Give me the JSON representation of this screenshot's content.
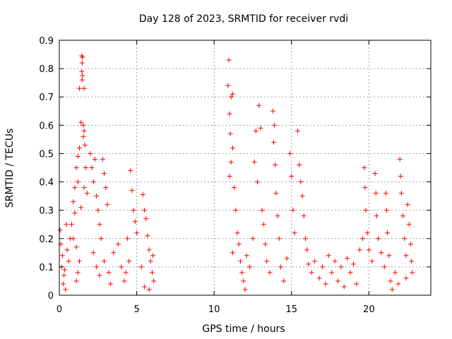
{
  "chart_data": {
    "type": "scatter",
    "title": "Day 128 of 2023, SRMTID for receiver rvdi",
    "xlabel": "GPS time / hours",
    "ylabel": "SRMTID / TECUs",
    "xlim": [
      0,
      24
    ],
    "ylim": [
      0,
      0.9
    ],
    "x_ticks": [
      0,
      5,
      10,
      15,
      20
    ],
    "x_tick_labels": [
      "0",
      "5",
      "10",
      "15",
      "20"
    ],
    "y_ticks": [
      0,
      0.1,
      0.2,
      0.3,
      0.4,
      0.5,
      0.6,
      0.7,
      0.8,
      0.9
    ],
    "y_tick_labels": [
      "0",
      "0.1",
      "0.2",
      "0.3",
      "0.4",
      "0.5",
      "0.6",
      "0.7",
      "0.8",
      "0.9"
    ],
    "grid": true,
    "marker": "plus",
    "marker_color": "#ff0000",
    "series": [
      {
        "name": "SRMTID",
        "points": [
          [
            1.45,
            0.845
          ],
          [
            1.5,
            0.84
          ],
          [
            1.48,
            0.82
          ],
          [
            1.45,
            0.79
          ],
          [
            1.5,
            0.775
          ],
          [
            1.47,
            0.76
          ],
          [
            1.3,
            0.73
          ],
          [
            1.6,
            0.73
          ],
          [
            1.4,
            0.61
          ],
          [
            1.55,
            0.6
          ],
          [
            1.6,
            0.58
          ],
          [
            1.55,
            0.56
          ],
          [
            1.65,
            0.53
          ],
          [
            1.3,
            0.52
          ],
          [
            1.2,
            0.49
          ],
          [
            1.1,
            0.45
          ],
          [
            1.7,
            0.45
          ],
          [
            1.2,
            0.4
          ],
          [
            1.0,
            0.38
          ],
          [
            1.6,
            0.38
          ],
          [
            1.8,
            0.36
          ],
          [
            0.9,
            0.33
          ],
          [
            1.4,
            0.31
          ],
          [
            1.0,
            0.29
          ],
          [
            0.8,
            0.25
          ],
          [
            0.9,
            0.2
          ],
          [
            1.1,
            0.17
          ],
          [
            1.3,
            0.12
          ],
          [
            1.2,
            0.08
          ],
          [
            1.1,
            0.05
          ],
          [
            0.05,
            0.23
          ],
          [
            0.1,
            0.18
          ],
          [
            0.2,
            0.14
          ],
          [
            0.15,
            0.1
          ],
          [
            0.3,
            0.07
          ],
          [
            0.25,
            0.04
          ],
          [
            0.4,
            0.02
          ],
          [
            0.5,
            0.16
          ],
          [
            0.6,
            0.12
          ],
          [
            0.7,
            0.2
          ],
          [
            0.45,
            0.25
          ],
          [
            0.35,
            0.09
          ],
          [
            2.0,
            0.5
          ],
          [
            2.1,
            0.45
          ],
          [
            2.3,
            0.48
          ],
          [
            2.2,
            0.4
          ],
          [
            2.4,
            0.35
          ],
          [
            2.5,
            0.3
          ],
          [
            2.6,
            0.25
          ],
          [
            2.7,
            0.2
          ],
          [
            2.8,
            0.48
          ],
          [
            2.9,
            0.43
          ],
          [
            3.0,
            0.38
          ],
          [
            3.1,
            0.32
          ],
          [
            2.2,
            0.15
          ],
          [
            2.4,
            0.1
          ],
          [
            2.6,
            0.07
          ],
          [
            2.9,
            0.12
          ],
          [
            3.2,
            0.08
          ],
          [
            3.5,
            0.15
          ],
          [
            3.8,
            0.18
          ],
          [
            4.0,
            0.1
          ],
          [
            4.2,
            0.05
          ],
          [
            4.4,
            0.2
          ],
          [
            4.6,
            0.44
          ],
          [
            4.7,
            0.37
          ],
          [
            4.8,
            0.3
          ],
          [
            4.9,
            0.26
          ],
          [
            5.0,
            0.22
          ],
          [
            4.5,
            0.12
          ],
          [
            4.3,
            0.08
          ],
          [
            3.3,
            0.04
          ],
          [
            5.4,
            0.355
          ],
          [
            5.5,
            0.3
          ],
          [
            5.6,
            0.27
          ],
          [
            5.7,
            0.21
          ],
          [
            5.8,
            0.16
          ],
          [
            5.9,
            0.12
          ],
          [
            6.0,
            0.08
          ],
          [
            6.1,
            0.05
          ],
          [
            5.5,
            0.03
          ],
          [
            5.3,
            0.1
          ],
          [
            5.8,
            0.02
          ],
          [
            6.05,
            0.14
          ],
          [
            10.95,
            0.83
          ],
          [
            10.9,
            0.74
          ],
          [
            11.1,
            0.7
          ],
          [
            11.2,
            0.71
          ],
          [
            11.0,
            0.64
          ],
          [
            11.05,
            0.57
          ],
          [
            11.2,
            0.52
          ],
          [
            11.1,
            0.47
          ],
          [
            11.0,
            0.42
          ],
          [
            11.3,
            0.38
          ],
          [
            11.4,
            0.3
          ],
          [
            11.5,
            0.22
          ],
          [
            11.6,
            0.18
          ],
          [
            11.2,
            0.15
          ],
          [
            11.7,
            0.12
          ],
          [
            11.8,
            0.08
          ],
          [
            11.9,
            0.05
          ],
          [
            12.0,
            0.02
          ],
          [
            12.1,
            0.14
          ],
          [
            12.3,
            0.1
          ],
          [
            12.5,
            0.2
          ],
          [
            12.6,
            0.47
          ],
          [
            12.7,
            0.58
          ],
          [
            12.9,
            0.67
          ],
          [
            13.0,
            0.59
          ],
          [
            12.8,
            0.4
          ],
          [
            13.1,
            0.3
          ],
          [
            13.2,
            0.25
          ],
          [
            13.3,
            0.18
          ],
          [
            13.4,
            0.12
          ],
          [
            13.6,
            0.08
          ],
          [
            13.8,
            0.65
          ],
          [
            13.9,
            0.6
          ],
          [
            13.85,
            0.54
          ],
          [
            13.95,
            0.46
          ],
          [
            14.0,
            0.36
          ],
          [
            14.1,
            0.28
          ],
          [
            14.2,
            0.2
          ],
          [
            14.3,
            0.1
          ],
          [
            14.5,
            0.05
          ],
          [
            14.7,
            0.13
          ],
          [
            14.9,
            0.5
          ],
          [
            15.0,
            0.42
          ],
          [
            15.1,
            0.3
          ],
          [
            15.2,
            0.22
          ],
          [
            15.4,
            0.58
          ],
          [
            15.5,
            0.46
          ],
          [
            15.6,
            0.4
          ],
          [
            15.7,
            0.35
          ],
          [
            15.8,
            0.28
          ],
          [
            15.9,
            0.2
          ],
          [
            16.0,
            0.16
          ],
          [
            16.1,
            0.11
          ],
          [
            16.3,
            0.08
          ],
          [
            16.5,
            0.12
          ],
          [
            16.8,
            0.06
          ],
          [
            17.0,
            0.1
          ],
          [
            17.2,
            0.04
          ],
          [
            17.4,
            0.14
          ],
          [
            17.6,
            0.08
          ],
          [
            17.8,
            0.12
          ],
          [
            18.0,
            0.05
          ],
          [
            18.2,
            0.1
          ],
          [
            18.4,
            0.03
          ],
          [
            18.6,
            0.13
          ],
          [
            18.8,
            0.08
          ],
          [
            19.0,
            0.11
          ],
          [
            19.2,
            0.04
          ],
          [
            19.4,
            0.16
          ],
          [
            19.6,
            0.2
          ],
          [
            19.7,
            0.45
          ],
          [
            19.75,
            0.38
          ],
          [
            19.8,
            0.3
          ],
          [
            19.9,
            0.22
          ],
          [
            20.0,
            0.16
          ],
          [
            20.2,
            0.12
          ],
          [
            20.4,
            0.43
          ],
          [
            20.45,
            0.36
          ],
          [
            20.5,
            0.28
          ],
          [
            20.6,
            0.2
          ],
          [
            20.8,
            0.15
          ],
          [
            21.0,
            0.1
          ],
          [
            21.1,
            0.36
          ],
          [
            21.15,
            0.3
          ],
          [
            21.2,
            0.22
          ],
          [
            21.3,
            0.14
          ],
          [
            21.4,
            0.05
          ],
          [
            21.5,
            0.02
          ],
          [
            21.7,
            0.08
          ],
          [
            21.9,
            0.04
          ],
          [
            22.0,
            0.48
          ],
          [
            22.05,
            0.42
          ],
          [
            22.1,
            0.36
          ],
          [
            22.2,
            0.28
          ],
          [
            22.3,
            0.2
          ],
          [
            22.4,
            0.14
          ],
          [
            22.5,
            0.32
          ],
          [
            22.6,
            0.25
          ],
          [
            22.7,
            0.18
          ],
          [
            22.75,
            0.12
          ],
          [
            22.8,
            0.08
          ],
          [
            22.4,
            0.06
          ]
        ]
      }
    ]
  }
}
